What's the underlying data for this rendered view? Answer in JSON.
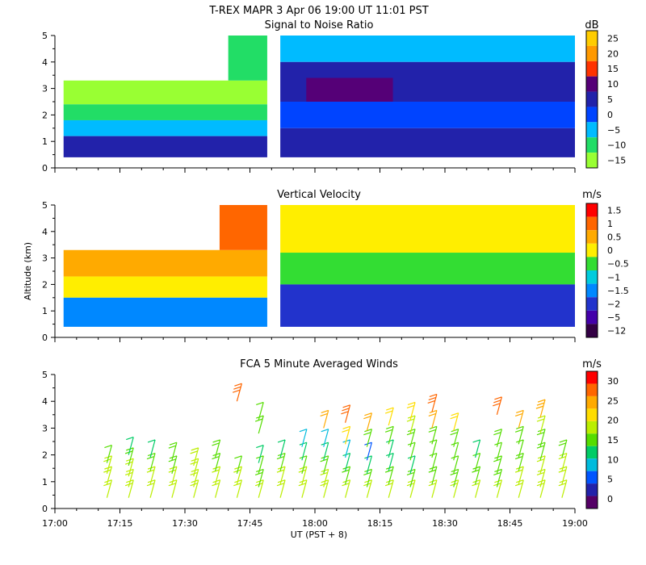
{
  "title": "T-REX   MAPR   3 Apr 06   19:00 UT   11:01   PST",
  "chart_data": [
    {
      "type": "heatmap",
      "title": "Signal to Noise Ratio",
      "ylabel": "",
      "ylim": [
        0,
        5
      ],
      "yticks": [
        "0",
        "1",
        "2",
        "3",
        "4",
        "5"
      ],
      "xlim": [
        0,
        120
      ],
      "colorbar": {
        "unit": "dB",
        "labels": [
          "25",
          "20",
          "15",
          "10",
          "5",
          "0",
          "−5",
          "−10",
          "−15"
        ],
        "colors": [
          "#ffcc00",
          "#ff9900",
          "#ff3300",
          "#550077",
          "#2222aa",
          "#0044ff",
          "#00bbff",
          "#22dd66",
          "#99ff33"
        ]
      },
      "data_gap": [
        49,
        52
      ],
      "regions": [
        {
          "x0": 2,
          "x1": 49,
          "y0": 2.4,
          "y1": 3.3,
          "level": "−15"
        },
        {
          "x0": 2,
          "x1": 49,
          "y0": 1.8,
          "y1": 2.4,
          "level": "−10"
        },
        {
          "x0": 2,
          "x1": 49,
          "y0": 1.2,
          "y1": 1.8,
          "level": "−5"
        },
        {
          "x0": 2,
          "x1": 49,
          "y0": 0.4,
          "y1": 1.2,
          "level": "5"
        },
        {
          "x0": 40,
          "x1": 49,
          "y0": 3.3,
          "y1": 5,
          "level": "−10"
        },
        {
          "x0": 52,
          "x1": 120,
          "y0": 4.0,
          "y1": 5,
          "level": "−5"
        },
        {
          "x0": 52,
          "x1": 120,
          "y0": 2.5,
          "y1": 4.0,
          "level": "5"
        },
        {
          "x0": 58,
          "x1": 78,
          "y0": 2.0,
          "y1": 3.4,
          "level": "10"
        },
        {
          "x0": 52,
          "x1": 120,
          "y0": 1.5,
          "y1": 2.5,
          "level": "0"
        },
        {
          "x0": 52,
          "x1": 120,
          "y0": 0.4,
          "y1": 1.5,
          "level": "5"
        }
      ]
    },
    {
      "type": "heatmap",
      "title": "Vertical Velocity",
      "ylabel": "Altitude (km)",
      "ylim": [
        0,
        5
      ],
      "yticks": [
        "0",
        "1",
        "2",
        "3",
        "4",
        "5"
      ],
      "xlim": [
        0,
        120
      ],
      "colorbar": {
        "unit": "m/s",
        "labels": [
          "1.5",
          "1",
          "0.5",
          "0",
          "−0.5",
          "−1",
          "−1.5",
          "−2",
          "−5",
          "−12"
        ],
        "colors": [
          "#ff0000",
          "#ff6600",
          "#ffaa00",
          "#ffee00",
          "#33dd33",
          "#00ccdd",
          "#0088ff",
          "#2233cc",
          "#4400aa",
          "#330044"
        ]
      },
      "data_gap": [
        49,
        52
      ],
      "regions": [
        {
          "x0": 2,
          "x1": 49,
          "y0": 2.3,
          "y1": 3.3,
          "level": "0.5"
        },
        {
          "x0": 2,
          "x1": 49,
          "y0": 1.5,
          "y1": 2.3,
          "level": "0"
        },
        {
          "x0": 2,
          "x1": 49,
          "y0": 0.4,
          "y1": 1.5,
          "level": "−1.5"
        },
        {
          "x0": 38,
          "x1": 49,
          "y0": 3.3,
          "y1": 5,
          "level": "1"
        },
        {
          "x0": 52,
          "x1": 120,
          "y0": 3.2,
          "y1": 5,
          "level": "0"
        },
        {
          "x0": 52,
          "x1": 120,
          "y0": 2.0,
          "y1": 3.2,
          "level": "−0.5"
        },
        {
          "x0": 52,
          "x1": 120,
          "y0": 0.4,
          "y1": 2.0,
          "level": "−2"
        }
      ]
    },
    {
      "type": "scatter",
      "subtype": "wind barbs",
      "title": "FCA 5 Minute Averaged Winds",
      "xlabel": "UT  (PST + 8)",
      "ylim": [
        0,
        5
      ],
      "yticks": [
        "0",
        "1",
        "2",
        "3",
        "4",
        "5"
      ],
      "xlim": [
        0,
        120
      ],
      "xticks": [
        "17:00",
        "17:15",
        "17:30",
        "17:45",
        "18:00",
        "18:15",
        "18:30",
        "18:45",
        "19:00"
      ],
      "colorbar": {
        "unit": "m/s",
        "labels": [
          "30",
          "25",
          "20",
          "15",
          "10",
          "5",
          "0"
        ],
        "colors": [
          "#ff0000",
          "#ff6600",
          "#ffaa00",
          "#ffdd00",
          "#bbee00",
          "#55dd00",
          "#00cc66",
          "#00bbdd",
          "#0055ff",
          "#2222aa",
          "#550066"
        ]
      },
      "barb_times": [
        12,
        17,
        22,
        27,
        32,
        37,
        42,
        47,
        52,
        57,
        62,
        67,
        72,
        77,
        82,
        87,
        92,
        97,
        102,
        107,
        112,
        117
      ],
      "barbs_by_time": [
        [
          [
            0.4,
            18
          ],
          [
            0.9,
            19
          ],
          [
            1.3,
            17
          ],
          [
            1.7,
            14
          ]
        ],
        [
          [
            0.4,
            18
          ],
          [
            0.8,
            18
          ],
          [
            1.2,
            17
          ],
          [
            1.6,
            16
          ],
          [
            2.0,
            12
          ]
        ],
        [
          [
            0.4,
            17
          ],
          [
            0.9,
            18
          ],
          [
            1.4,
            16
          ],
          [
            1.9,
            13
          ]
        ],
        [
          [
            0.4,
            18
          ],
          [
            0.9,
            17
          ],
          [
            1.3,
            16
          ],
          [
            1.8,
            16
          ]
        ],
        [
          [
            0.4,
            19
          ],
          [
            0.8,
            18
          ],
          [
            1.2,
            18
          ],
          [
            1.6,
            17
          ]
        ],
        [
          [
            0.4,
            17
          ],
          [
            0.9,
            17
          ],
          [
            1.4,
            16
          ],
          [
            1.9,
            15
          ]
        ],
        [
          [
            0.4,
            18
          ],
          [
            0.9,
            17
          ],
          [
            1.3,
            14
          ],
          [
            4.0,
            28
          ]
        ],
        [
          [
            0.4,
            17
          ],
          [
            0.8,
            16
          ],
          [
            1.3,
            14
          ],
          [
            1.7,
            11
          ],
          [
            2.8,
            15
          ],
          [
            3.3,
            14
          ]
        ],
        [
          [
            0.4,
            18
          ],
          [
            0.9,
            17
          ],
          [
            1.4,
            15
          ],
          [
            1.9,
            12
          ]
        ],
        [
          [
            0.4,
            18
          ],
          [
            0.9,
            17
          ],
          [
            1.3,
            14
          ],
          [
            1.8,
            12
          ],
          [
            2.3,
            8
          ]
        ],
        [
          [
            0.4,
            19
          ],
          [
            0.8,
            18
          ],
          [
            1.3,
            15
          ],
          [
            1.8,
            13
          ],
          [
            2.3,
            10
          ],
          [
            3.0,
            24
          ]
        ],
        [
          [
            0.4,
            18
          ],
          [
            0.9,
            16
          ],
          [
            1.4,
            13
          ],
          [
            1.9,
            8
          ],
          [
            2.4,
            20
          ],
          [
            3.2,
            27
          ]
        ],
        [
          [
            0.4,
            18
          ],
          [
            0.8,
            16
          ],
          [
            1.3,
            12
          ],
          [
            1.8,
            7
          ],
          [
            2.3,
            15
          ],
          [
            2.9,
            24
          ]
        ],
        [
          [
            0.4,
            17
          ],
          [
            0.9,
            16
          ],
          [
            1.4,
            13
          ],
          [
            1.9,
            11
          ],
          [
            2.4,
            15
          ],
          [
            3.1,
            21
          ]
        ],
        [
          [
            0.4,
            17
          ],
          [
            0.8,
            16
          ],
          [
            1.3,
            13
          ],
          [
            1.8,
            14
          ],
          [
            2.3,
            15
          ],
          [
            2.8,
            18
          ],
          [
            3.3,
            20
          ]
        ],
        [
          [
            0.4,
            18
          ],
          [
            0.9,
            16
          ],
          [
            1.4,
            14
          ],
          [
            1.9,
            14
          ],
          [
            2.4,
            15
          ],
          [
            3.0,
            23
          ],
          [
            3.6,
            27
          ]
        ],
        [
          [
            0.4,
            17
          ],
          [
            0.8,
            16
          ],
          [
            1.3,
            14
          ],
          [
            1.8,
            14
          ],
          [
            2.3,
            16
          ],
          [
            2.9,
            22
          ]
        ],
        [
          [
            0.4,
            18
          ],
          [
            0.9,
            15
          ],
          [
            1.4,
            14
          ],
          [
            1.9,
            13
          ]
        ],
        [
          [
            0.4,
            18
          ],
          [
            0.8,
            16
          ],
          [
            1.3,
            15
          ],
          [
            1.8,
            14
          ],
          [
            2.3,
            15
          ],
          [
            3.5,
            26
          ]
        ],
        [
          [
            0.4,
            18
          ],
          [
            0.9,
            17
          ],
          [
            1.4,
            16
          ],
          [
            1.9,
            14
          ],
          [
            2.4,
            15
          ],
          [
            3.0,
            23
          ]
        ],
        [
          [
            0.4,
            19
          ],
          [
            0.8,
            18
          ],
          [
            1.3,
            17
          ],
          [
            1.8,
            16
          ],
          [
            2.3,
            15
          ],
          [
            2.8,
            19
          ],
          [
            3.4,
            25
          ]
        ],
        [
          [
            0.4,
            18
          ],
          [
            0.9,
            18
          ],
          [
            1.4,
            17
          ],
          [
            1.9,
            15
          ]
        ]
      ]
    }
  ]
}
